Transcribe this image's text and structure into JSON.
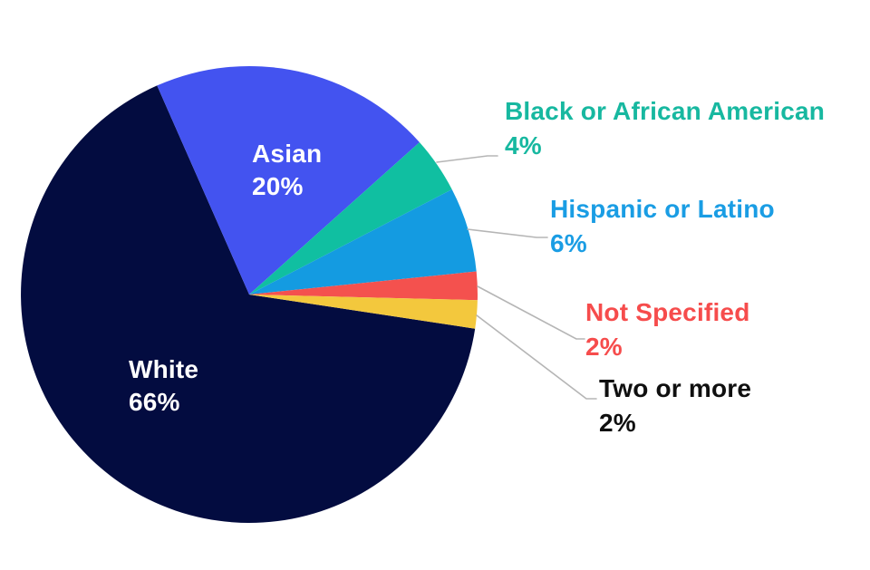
{
  "chart_data": {
    "type": "pie",
    "title": "",
    "legend_position": "none",
    "background_color": "#ffffff",
    "leader_line_color": "#b5b5b5",
    "start_angle_deg": 98.6,
    "direction": "clockwise",
    "slices": [
      {
        "label": "White",
        "value": 66,
        "pct_label": "66%",
        "color": "#030c40",
        "text_color": "#ffffff",
        "label_placement": "inside"
      },
      {
        "label": "Asian",
        "value": 20,
        "pct_label": "20%",
        "color": "#4353f0",
        "text_color": "#ffffff",
        "label_placement": "inside"
      },
      {
        "label": "Black or African American",
        "value": 4,
        "pct_label": "4%",
        "color": "#10bfa1",
        "text_color": "#17b8a0",
        "label_placement": "outside"
      },
      {
        "label": "Hispanic or Latino",
        "value": 6,
        "pct_label": "6%",
        "color": "#149be1",
        "text_color": "#1a9de4",
        "label_placement": "outside"
      },
      {
        "label": "Not Specified",
        "value": 2,
        "pct_label": "2%",
        "color": "#f4514e",
        "text_color": "#f64c4c",
        "label_placement": "outside"
      },
      {
        "label": "Two or more",
        "value": 2,
        "pct_label": "2%",
        "color": "#f3c83d",
        "text_color": "#0f0f0f",
        "label_placement": "outside"
      }
    ]
  }
}
